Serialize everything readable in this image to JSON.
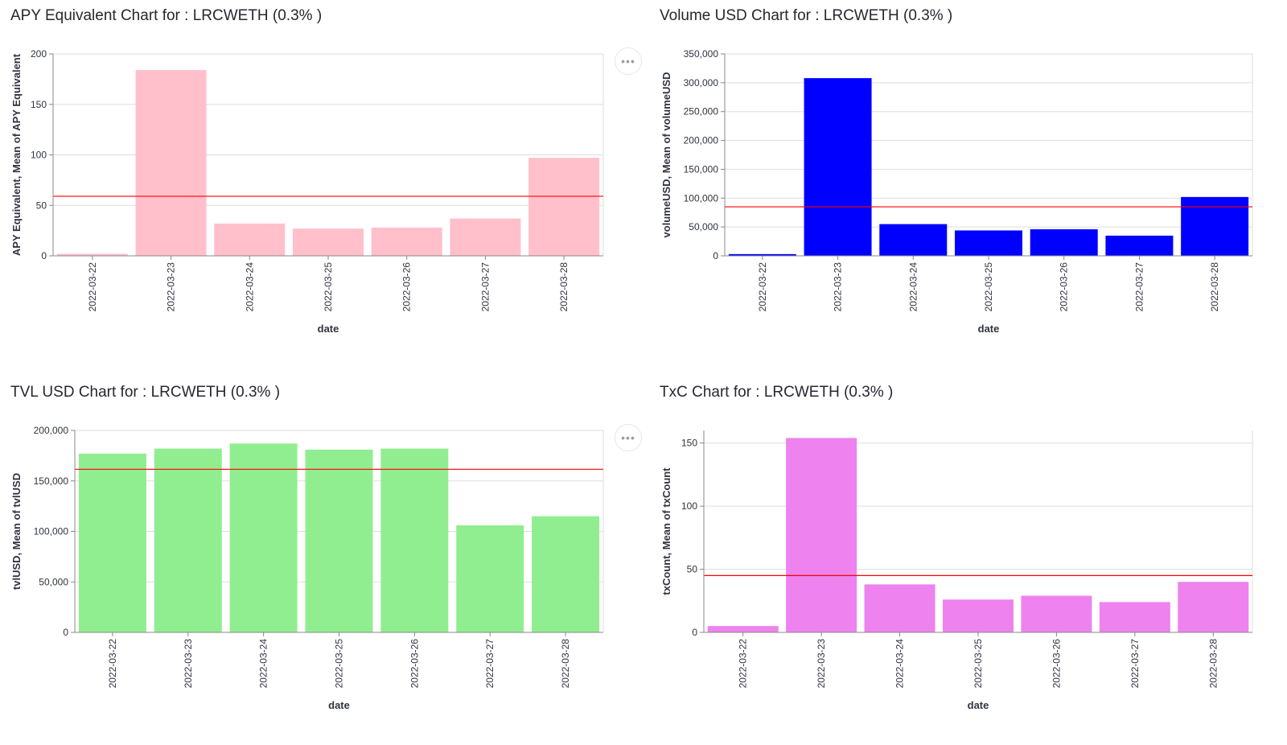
{
  "menu_icon_glyph": "•••",
  "charts": [
    {
      "id": "apy",
      "title": "APY Equivalent Chart for : LRCWETH (0.3% )",
      "color": "#ffc0cb",
      "chart_data": {
        "type": "bar",
        "categories": [
          "2022-03-22",
          "2022-03-23",
          "2022-03-24",
          "2022-03-25",
          "2022-03-26",
          "2022-03-27",
          "2022-03-28"
        ],
        "values": [
          2,
          184,
          32,
          27,
          28,
          37,
          97
        ],
        "mean": 59,
        "mean_color": "#ff0000",
        "xlabel": "date",
        "ylabel": "APY Equivalent, Mean of APY Equivalent",
        "ylim": [
          0,
          200
        ],
        "yticks": [
          0,
          50,
          100,
          150,
          200
        ],
        "ytick_labels": [
          "0",
          "50",
          "100",
          "150",
          "200"
        ],
        "grid": true
      }
    },
    {
      "id": "volume",
      "title": "Volume USD Chart for : LRCWETH (0.3% )",
      "color": "#0000ff",
      "chart_data": {
        "type": "bar",
        "categories": [
          "2022-03-22",
          "2022-03-23",
          "2022-03-24",
          "2022-03-25",
          "2022-03-26",
          "2022-03-27",
          "2022-03-28"
        ],
        "values": [
          3000,
          308000,
          55000,
          44000,
          46000,
          35000,
          102000
        ],
        "mean": 85000,
        "mean_color": "#ff0000",
        "xlabel": "date",
        "ylabel": "volumeUSD, Mean of volumeUSD",
        "ylim": [
          0,
          350000
        ],
        "yticks": [
          0,
          50000,
          100000,
          150000,
          200000,
          250000,
          300000,
          350000
        ],
        "ytick_labels": [
          "0",
          "50,000",
          "100,000",
          "150,000",
          "200,000",
          "250,000",
          "300,000",
          "350,000"
        ],
        "grid": true
      }
    },
    {
      "id": "tvl",
      "title": "TVL USD Chart for : LRCWETH (0.3% )",
      "color": "#90ee90",
      "chart_data": {
        "type": "bar",
        "categories": [
          "2022-03-22",
          "2022-03-23",
          "2022-03-24",
          "2022-03-25",
          "2022-03-26",
          "2022-03-27",
          "2022-03-28"
        ],
        "values": [
          177000,
          182000,
          187000,
          181000,
          182000,
          106000,
          115000
        ],
        "mean": 161500,
        "mean_color": "#ff0000",
        "xlabel": "date",
        "ylabel": "tvlUSD, Mean of tvlUSD",
        "ylim": [
          0,
          200000
        ],
        "yticks": [
          0,
          50000,
          100000,
          150000,
          200000
        ],
        "ytick_labels": [
          "0",
          "50,000",
          "100,000",
          "150,000",
          "200,000"
        ],
        "grid": true
      }
    },
    {
      "id": "txc",
      "title": "TxC Chart for : LRCWETH (0.3% )",
      "color": "#ee82ee",
      "chart_data": {
        "type": "bar",
        "categories": [
          "2022-03-22",
          "2022-03-23",
          "2022-03-24",
          "2022-03-25",
          "2022-03-26",
          "2022-03-27",
          "2022-03-28"
        ],
        "values": [
          5,
          154,
          38,
          26,
          29,
          24,
          40
        ],
        "mean": 45,
        "mean_color": "#ff0000",
        "xlabel": "date",
        "ylabel": "txCount, Mean of txCount",
        "ylim": [
          0,
          160
        ],
        "yticks": [
          0,
          50,
          100,
          150
        ],
        "ytick_labels": [
          "0",
          "50",
          "100",
          "150"
        ],
        "grid": true
      }
    }
  ]
}
